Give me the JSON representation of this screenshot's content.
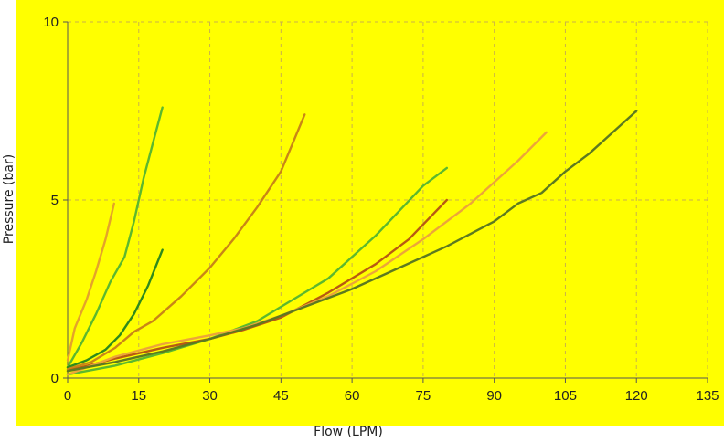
{
  "chart_data": {
    "type": "line",
    "title": "",
    "xlabel": "Flow (LPM)",
    "ylabel": "Pressure (bar)",
    "xlim": [
      0,
      135
    ],
    "ylim": [
      0,
      10
    ],
    "x_ticks": [
      0,
      15,
      30,
      45,
      60,
      75,
      90,
      105,
      120,
      135
    ],
    "y_ticks": [
      0,
      5,
      10
    ],
    "grid": true,
    "background": "#ffff00",
    "series": [
      {
        "color": "#e4a32a",
        "points": [
          [
            0,
            0.5
          ],
          [
            1.5,
            1.4
          ],
          [
            4,
            2.2
          ],
          [
            6,
            3.0
          ],
          [
            8,
            3.9
          ],
          [
            9.8,
            4.9
          ]
        ]
      },
      {
        "color": "#5cb82e",
        "points": [
          [
            0,
            0.3
          ],
          [
            3,
            1.0
          ],
          [
            6,
            1.8
          ],
          [
            9,
            2.7
          ],
          [
            12,
            3.4
          ],
          [
            14,
            4.4
          ],
          [
            16,
            5.6
          ],
          [
            18,
            6.6
          ],
          [
            20,
            7.6
          ]
        ]
      },
      {
        "color": "#2f8a1c",
        "points": [
          [
            0,
            0.3
          ],
          [
            4,
            0.5
          ],
          [
            8,
            0.8
          ],
          [
            11,
            1.2
          ],
          [
            14,
            1.8
          ],
          [
            17,
            2.6
          ],
          [
            20,
            3.6
          ]
        ]
      },
      {
        "color": "#c98616",
        "points": [
          [
            0,
            0.25
          ],
          [
            5,
            0.45
          ],
          [
            10,
            0.85
          ],
          [
            14,
            1.3
          ],
          [
            18,
            1.6
          ],
          [
            24,
            2.3
          ],
          [
            30,
            3.1
          ],
          [
            35,
            3.9
          ],
          [
            40,
            4.8
          ],
          [
            45,
            5.8
          ],
          [
            50,
            7.4
          ]
        ]
      },
      {
        "color": "#5cb82e",
        "points": [
          [
            0,
            0.1
          ],
          [
            10,
            0.35
          ],
          [
            20,
            0.7
          ],
          [
            30,
            1.1
          ],
          [
            40,
            1.6
          ],
          [
            45,
            2.0
          ],
          [
            50,
            2.4
          ],
          [
            55,
            2.8
          ],
          [
            60,
            3.4
          ],
          [
            65,
            4.0
          ],
          [
            70,
            4.7
          ],
          [
            75,
            5.4
          ],
          [
            80,
            5.9
          ]
        ]
      },
      {
        "color": "#b85a12",
        "points": [
          [
            0,
            0.2
          ],
          [
            10,
            0.55
          ],
          [
            20,
            0.85
          ],
          [
            30,
            1.1
          ],
          [
            37,
            1.35
          ],
          [
            45,
            1.7
          ],
          [
            55,
            2.4
          ],
          [
            65,
            3.2
          ],
          [
            72,
            3.9
          ],
          [
            80,
            5.0
          ]
        ]
      },
      {
        "color": "#eca53a",
        "points": [
          [
            0,
            0.1
          ],
          [
            10,
            0.6
          ],
          [
            20,
            0.95
          ],
          [
            30,
            1.2
          ],
          [
            37,
            1.4
          ],
          [
            45,
            1.75
          ],
          [
            55,
            2.3
          ],
          [
            65,
            3.0
          ],
          [
            75,
            3.9
          ],
          [
            85,
            4.9
          ],
          [
            95,
            6.1
          ],
          [
            101,
            6.9
          ]
        ]
      },
      {
        "color": "#5d7a20",
        "points": [
          [
            0,
            0.2
          ],
          [
            10,
            0.45
          ],
          [
            20,
            0.75
          ],
          [
            30,
            1.1
          ],
          [
            40,
            1.5
          ],
          [
            50,
            2.0
          ],
          [
            60,
            2.5
          ],
          [
            70,
            3.1
          ],
          [
            80,
            3.7
          ],
          [
            90,
            4.4
          ],
          [
            95,
            4.9
          ],
          [
            100,
            5.2
          ],
          [
            105,
            5.8
          ],
          [
            110,
            6.3
          ],
          [
            115,
            6.9
          ],
          [
            120,
            7.5
          ]
        ]
      }
    ]
  }
}
